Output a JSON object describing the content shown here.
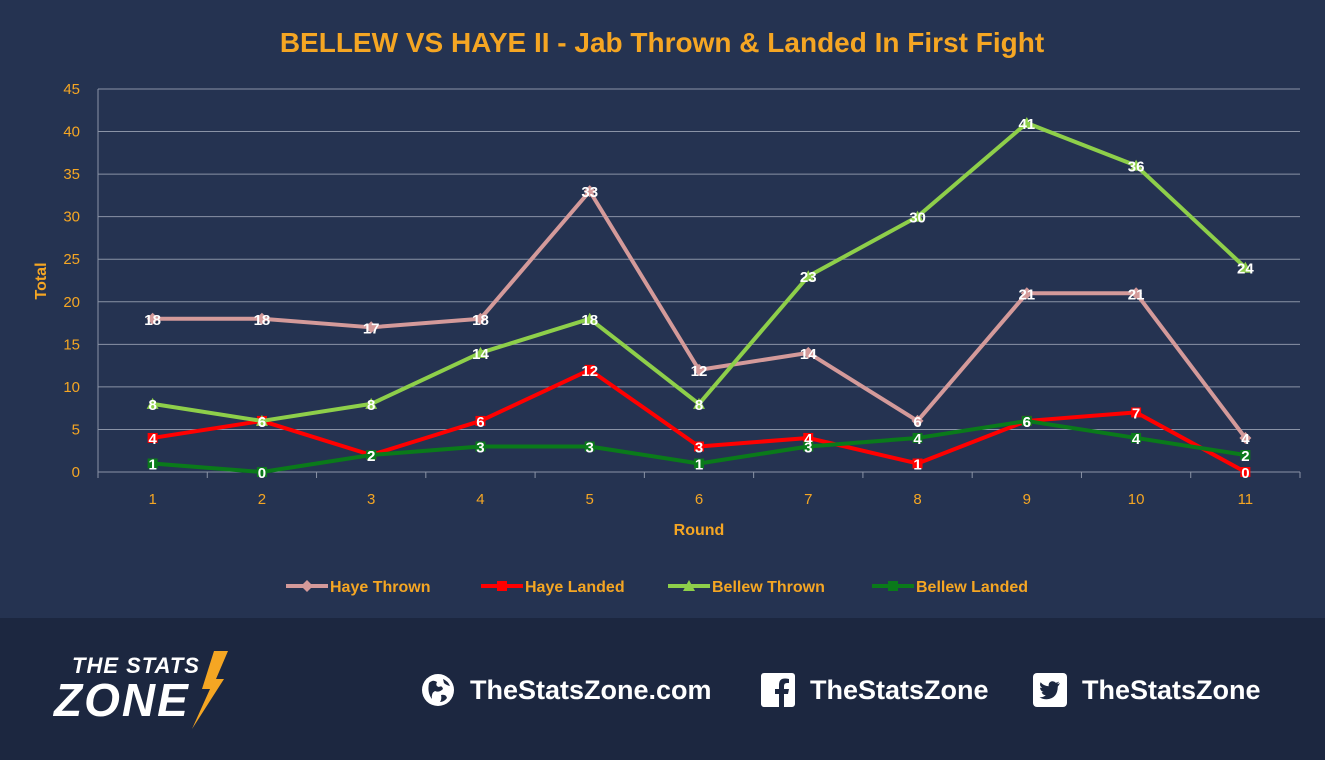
{
  "chart_data": {
    "type": "line",
    "title": "BELLEW VS HAYE II - Jab Thrown & Landed In First Fight",
    "xlabel": "Round",
    "ylabel": "Total",
    "categories": [
      "1",
      "2",
      "3",
      "4",
      "5",
      "6",
      "7",
      "8",
      "9",
      "10",
      "11"
    ],
    "ylim": [
      0,
      45
    ],
    "yticks": [
      "0",
      "5",
      "10",
      "15",
      "20",
      "25",
      "30",
      "35",
      "40",
      "45"
    ],
    "grid": true,
    "legend_position": "bottom",
    "series": [
      {
        "name": "Haye Thrown",
        "color": "#d49a9a",
        "marker": "diamond",
        "values": [
          18,
          18,
          17,
          18,
          33,
          12,
          14,
          6,
          21,
          21,
          4
        ]
      },
      {
        "name": "Haye Landed",
        "color": "#ff0000",
        "marker": "square",
        "values": [
          4,
          6,
          2,
          6,
          12,
          3,
          4,
          1,
          6,
          7,
          0
        ]
      },
      {
        "name": "Bellew Thrown",
        "color": "#8ecf4a",
        "marker": "triangle",
        "values": [
          8,
          6,
          8,
          14,
          18,
          8,
          23,
          30,
          41,
          36,
          24
        ]
      },
      {
        "name": "Bellew Landed",
        "color": "#0a7a1a",
        "marker": "square",
        "values": [
          1,
          0,
          2,
          3,
          3,
          1,
          3,
          4,
          6,
          4,
          2
        ]
      }
    ],
    "colors": {
      "title": "#f5a623",
      "axis_text": "#f5a623",
      "grid": "#8a93a6",
      "label_text": "#ffffff"
    }
  },
  "footer": {
    "logo_line1": "THE STATS",
    "logo_line2": "ZONE",
    "website": "TheStatsZone.com",
    "facebook": "TheStatsZone",
    "twitter": "TheStatsZone",
    "icons": [
      "globe-icon",
      "facebook-icon",
      "twitter-icon"
    ]
  }
}
